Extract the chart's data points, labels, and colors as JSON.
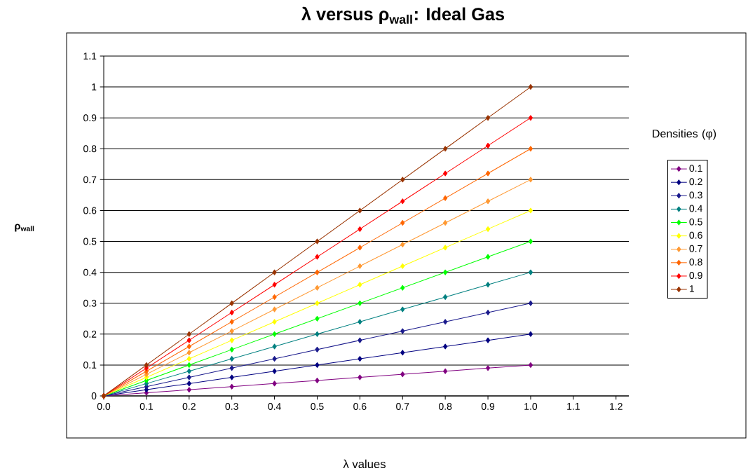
{
  "chart_data": {
    "type": "line",
    "title": "λ versus ρ$_{wall}$: Ideal Gas",
    "xlabel": "λ values",
    "ylabel": "ρ$_{wall}$",
    "legend_title": "Densities (φ)",
    "x": [
      0,
      0.1,
      0.2,
      0.3,
      0.4,
      0.5,
      0.6,
      0.7,
      0.8,
      0.9,
      1.0
    ],
    "xlim": [
      0,
      1.23
    ],
    "xticks": [
      {
        "value": 0,
        "label": "0.0"
      },
      0.1,
      0.2,
      0.3,
      0.4,
      0.5,
      0.6,
      0.7,
      0.8,
      0.9,
      {
        "value": 1.0,
        "label": "1.0"
      },
      1.1,
      1.2
    ],
    "ylim": [
      0,
      1.1
    ],
    "yticks": [
      0,
      0.1,
      0.2,
      0.3,
      0.4,
      0.5,
      0.6,
      0.7,
      0.8,
      0.9,
      1,
      1.1
    ],
    "grid": "y",
    "legend": "right",
    "marker": "diamond",
    "line_style": "solid",
    "series": [
      {
        "name": "0.1",
        "color": "#800080",
        "values": [
          0,
          0.01,
          0.02,
          0.03,
          0.04,
          0.05,
          0.06,
          0.07,
          0.08,
          0.09,
          0.1
        ]
      },
      {
        "name": "0.2",
        "color": "#000080",
        "values": [
          0,
          0.02,
          0.04,
          0.06,
          0.08,
          0.1,
          0.12,
          0.14,
          0.16,
          0.18,
          0.2
        ]
      },
      {
        "name": "0.3",
        "color": "#1a1a8c",
        "values": [
          0,
          0.03,
          0.06,
          0.09,
          0.12,
          0.15,
          0.18,
          0.21,
          0.24,
          0.27,
          0.3
        ]
      },
      {
        "name": "0.4",
        "color": "#008080",
        "values": [
          0,
          0.04,
          0.08,
          0.12,
          0.16,
          0.2,
          0.24,
          0.28,
          0.32,
          0.36,
          0.4
        ]
      },
      {
        "name": "0.5",
        "color": "#00ff00",
        "values": [
          0,
          0.05,
          0.1,
          0.15,
          0.2,
          0.25,
          0.3,
          0.35,
          0.4,
          0.45,
          0.5
        ]
      },
      {
        "name": "0.6",
        "color": "#ffff00",
        "values": [
          0,
          0.06,
          0.12,
          0.18,
          0.24,
          0.3,
          0.36,
          0.42,
          0.48,
          0.54,
          0.6
        ]
      },
      {
        "name": "0.7",
        "color": "#ff9933",
        "values": [
          0,
          0.07,
          0.14,
          0.21,
          0.28,
          0.35,
          0.42,
          0.49,
          0.56,
          0.63,
          0.7
        ]
      },
      {
        "name": "0.8",
        "color": "#ff6600",
        "values": [
          0,
          0.08,
          0.16,
          0.24,
          0.32,
          0.4,
          0.48,
          0.56,
          0.64,
          0.72,
          0.8
        ]
      },
      {
        "name": "0.9",
        "color": "#ff0000",
        "values": [
          0,
          0.09,
          0.18,
          0.27,
          0.36,
          0.45,
          0.54,
          0.63,
          0.72,
          0.81,
          0.9
        ]
      },
      {
        "name": "1",
        "color": "#993300",
        "values": [
          0,
          0.1,
          0.2,
          0.3,
          0.4,
          0.5,
          0.6,
          0.7,
          0.8,
          0.9,
          1
        ]
      }
    ]
  }
}
